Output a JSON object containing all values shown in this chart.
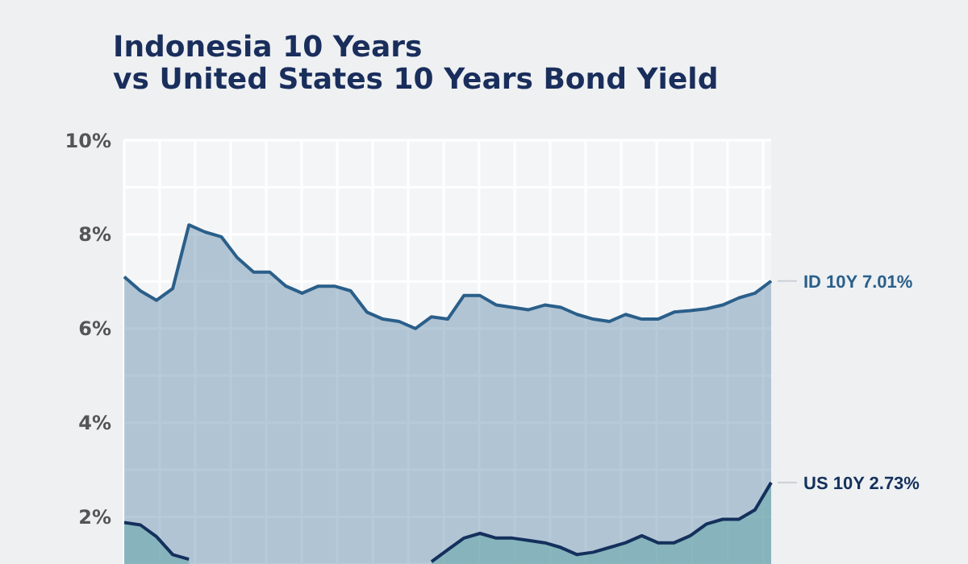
{
  "chart_data": {
    "type": "area",
    "title": "Indonesia 10 Years\nvs United States 10 Years Bond Yield",
    "categories": [
      null,
      null,
      null,
      null,
      null,
      null,
      null,
      null,
      null,
      null,
      null,
      null,
      null,
      null,
      null,
      null,
      null,
      null,
      null,
      null,
      null,
      null,
      null,
      null,
      null,
      null,
      null,
      null,
      null,
      null,
      null,
      null,
      null,
      null,
      null,
      null,
      null,
      null,
      null,
      null,
      null
    ],
    "series": [
      {
        "name": "ID 10Y",
        "color": "#2a5f8a",
        "values": [
          7.1,
          6.8,
          6.6,
          6.85,
          8.2,
          8.05,
          7.95,
          7.5,
          7.2,
          7.2,
          6.9,
          6.75,
          6.9,
          6.9,
          6.8,
          6.35,
          6.2,
          6.15,
          6.0,
          6.25,
          6.2,
          6.7,
          6.7,
          6.5,
          6.45,
          6.4,
          6.5,
          6.45,
          6.3,
          6.2,
          6.15,
          6.3,
          6.2,
          6.2,
          6.35,
          6.38,
          6.42,
          6.5,
          6.65,
          6.75,
          7.01
        ],
        "value_labels": [
          null,
          null,
          null,
          null,
          null,
          null,
          null,
          null,
          null,
          null,
          null,
          null,
          null,
          null,
          null,
          null,
          null,
          null,
          null,
          null,
          null,
          null,
          null,
          null,
          null,
          null,
          null,
          null,
          null,
          null,
          null,
          null,
          null,
          null,
          null,
          null,
          null,
          null,
          null,
          null,
          "7.01%"
        ]
      },
      {
        "name": "US 10Y",
        "color": "#14305c",
        "values": [
          1.88,
          1.83,
          1.58,
          1.2,
          1.1,
          null,
          null,
          null,
          null,
          null,
          null,
          null,
          null,
          null,
          null,
          null,
          null,
          null,
          null,
          1.05,
          1.3,
          1.55,
          1.65,
          1.55,
          1.55,
          1.5,
          1.45,
          1.35,
          1.2,
          1.25,
          1.35,
          1.45,
          1.6,
          1.45,
          1.45,
          1.6,
          1.85,
          1.95,
          1.95,
          2.15,
          2.73
        ],
        "value_labels": [
          null,
          null,
          null,
          null,
          null,
          null,
          null,
          null,
          null,
          null,
          null,
          null,
          null,
          null,
          null,
          null,
          null,
          null,
          null,
          null,
          null,
          null,
          null,
          null,
          null,
          null,
          null,
          null,
          null,
          null,
          null,
          null,
          null,
          null,
          null,
          null,
          null,
          null,
          null,
          null,
          "2.73%"
        ]
      }
    ],
    "ylim": [
      1,
      10
    ],
    "yticks": [
      {
        "value": 2,
        "label": "2%"
      },
      {
        "value": 3,
        "label": null
      },
      {
        "value": 4,
        "label": "4%"
      },
      {
        "value": 5,
        "label": null
      },
      {
        "value": 6,
        "label": "6%"
      },
      {
        "value": 7,
        "label": null
      },
      {
        "value": 8,
        "label": "8%"
      },
      {
        "value": 9,
        "label": null
      },
      {
        "value": 10,
        "label": "10%"
      }
    ],
    "grid": true,
    "tick_labels": "y"
  }
}
